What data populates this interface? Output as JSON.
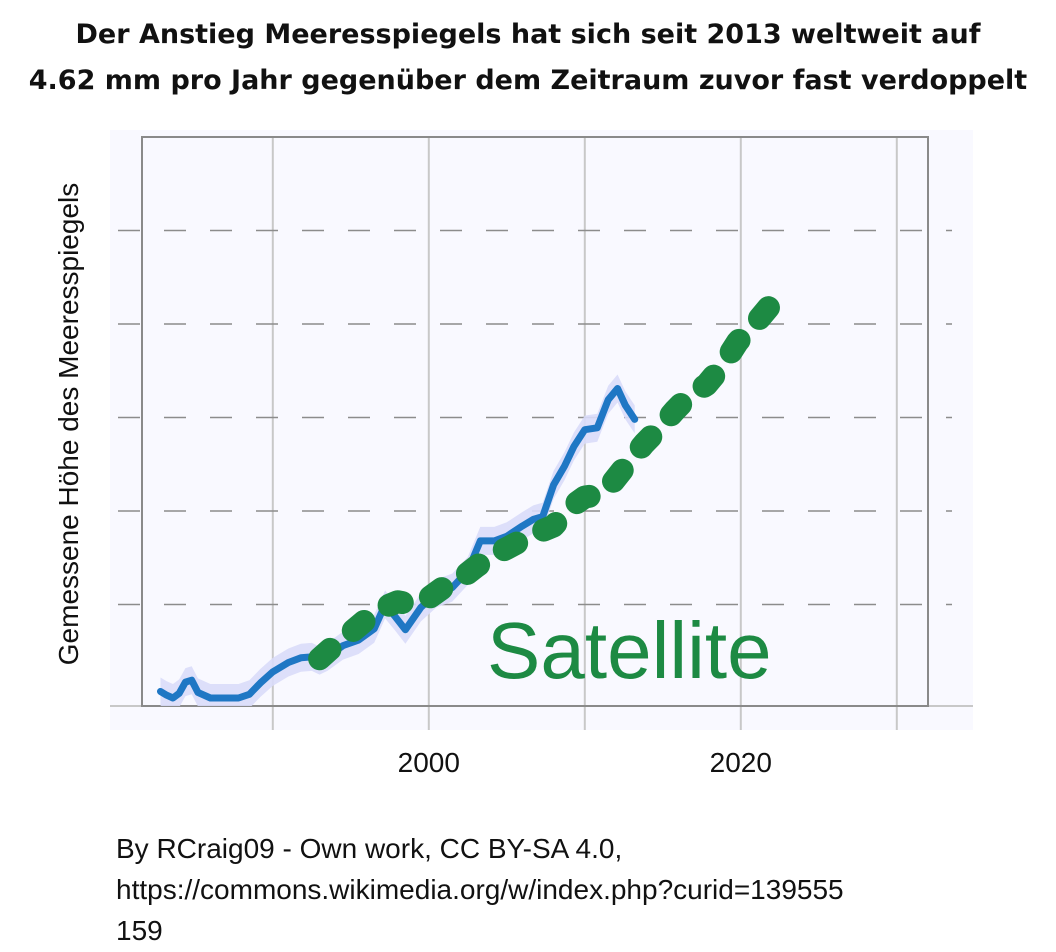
{
  "title": {
    "line1": "Der Anstieg Meeresspiegels hat sich seit 2013 weltweit auf",
    "line2": "4.62 mm pro Jahr gegenüber dem Zeitraum zuvor fast verdoppelt"
  },
  "credit": {
    "line1": "By RCraig09 - Own work, CC BY-SA 4.0,",
    "line2": "https://commons.wikimedia.org/w/index.php?curid=139555",
    "line3": "159"
  },
  "chart_data": {
    "type": "line",
    "ylabel": "Gemessene Höhe des Meeresspiegels",
    "xlabel": "",
    "annotation": "Satellite",
    "xlim": [
      1982,
      2032
    ],
    "x_ticks": [
      1990,
      2000,
      2010,
      2020,
      2030
    ],
    "x_tick_labels": [
      "",
      "2000",
      "",
      "2020",
      ""
    ],
    "ylim": [
      0,
      6
    ],
    "y_gridlines": [
      1,
      2,
      3,
      4,
      5
    ],
    "grid": true,
    "colors": {
      "measured": "#1f77c4",
      "band": "#d9dcfa",
      "satellite": "#1d8a43",
      "background": "#f9f9ff"
    },
    "series": [
      {
        "name": "",
        "style": "solid",
        "x": [
          1982.8,
          1983.2,
          1983.6,
          1984.0,
          1984.4,
          1984.8,
          1985.2,
          1986.0,
          1987.0,
          1987.8,
          1988.5,
          1989.2,
          1990.0,
          1991.0,
          1991.8,
          1992.5,
          1993.0,
          1993.5,
          1994.0,
          1994.5,
          1995.5,
          1996.5,
          1997.2,
          1997.8,
          1998.5,
          1999.5,
          2000.5,
          2001.5,
          2002.5,
          2003.3,
          2004.2,
          2005.0,
          2006.0,
          2006.7,
          2007.3,
          2008.0,
          2008.7,
          2009.3,
          2010.0,
          2010.8,
          2011.5,
          2012.1,
          2012.6,
          2013.2
        ],
        "y": [
          0.07,
          0.03,
          0.0,
          0.05,
          0.17,
          0.19,
          0.06,
          0.0,
          0.0,
          0.0,
          0.04,
          0.16,
          0.28,
          0.38,
          0.43,
          0.44,
          0.4,
          0.44,
          0.5,
          0.56,
          0.62,
          0.74,
          1.0,
          0.88,
          0.73,
          0.97,
          1.12,
          1.18,
          1.36,
          1.68,
          1.68,
          1.73,
          1.84,
          1.91,
          1.94,
          2.28,
          2.48,
          2.69,
          2.87,
          2.89,
          3.19,
          3.31,
          3.13,
          2.98
        ]
      },
      {
        "name": "Satellite",
        "style": "dotted",
        "x": [
          1993.0,
          1994.0,
          1995.0,
          1996.0,
          1997.0,
          1998.0,
          1999.0,
          2000.0,
          2001.0,
          2002.0,
          2003.0,
          2004.0,
          2005.0,
          2006.0,
          2007.0,
          2008.0,
          2009.0,
          2010.0,
          2010.9,
          2011.8,
          2012.8,
          2013.8,
          2014.8,
          2015.8,
          2016.8,
          2017.8,
          2018.8,
          2019.8,
          2020.8,
          2021.8,
          2022.9
        ],
        "y": [
          0.42,
          0.57,
          0.7,
          0.84,
          0.96,
          1.03,
          1.0,
          1.07,
          1.19,
          1.27,
          1.4,
          1.52,
          1.6,
          1.69,
          1.77,
          1.84,
          2.03,
          2.15,
          2.17,
          2.31,
          2.52,
          2.72,
          2.89,
          3.08,
          3.25,
          3.35,
          3.55,
          3.81,
          3.98,
          4.18,
          4.4
        ]
      }
    ]
  }
}
